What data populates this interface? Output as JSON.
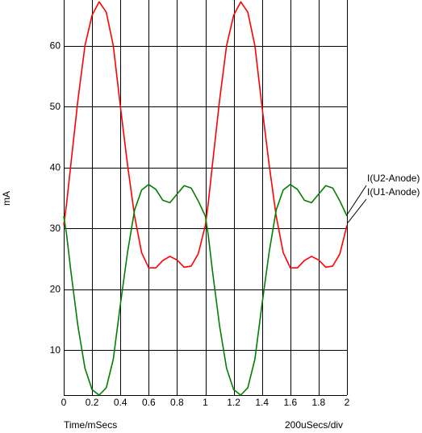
{
  "chart_data": {
    "type": "line",
    "title": "",
    "xlabel": "Time/mSecs",
    "x_scale_note": "200uSecs/div",
    "ylabel": "mA",
    "xlim": [
      0,
      2
    ],
    "ylim": [
      2.6,
      67.5
    ],
    "x_ticks": [
      0,
      0.2,
      0.4,
      0.6,
      0.8,
      1,
      1.2,
      1.4,
      1.6,
      1.8,
      2
    ],
    "x_tick_labels": [
      "0",
      "0.2",
      "0.4",
      "0.6",
      "0.8",
      "1",
      "1.2",
      "1.4",
      "1.6",
      "1.8",
      "2"
    ],
    "y_ticks": [
      10,
      20,
      30,
      40,
      50,
      60
    ],
    "y_tick_labels": [
      "10",
      "20",
      "30",
      "40",
      "50",
      "60"
    ],
    "grid": true,
    "series": [
      {
        "name": "I(U1-Anode)",
        "color": "#ff0000",
        "x": [
          0,
          0.02,
          0.05,
          0.1,
          0.15,
          0.2,
          0.25,
          0.3,
          0.35,
          0.4,
          0.45,
          0.5,
          0.55,
          0.6,
          0.65,
          0.7,
          0.75,
          0.8,
          0.85,
          0.9,
          0.95,
          1.0,
          1.02,
          1.05,
          1.1,
          1.15,
          1.2,
          1.25,
          1.3,
          1.35,
          1.4,
          1.45,
          1.5,
          1.55,
          1.6,
          1.65,
          1.7,
          1.75,
          1.8,
          1.85,
          1.9,
          1.95,
          2.0
        ],
        "values": [
          30.5,
          34,
          40.5,
          51,
          60,
          65,
          67.2,
          65.5,
          60,
          50,
          40.5,
          32,
          26,
          23.5,
          23.5,
          24.7,
          25.4,
          24.8,
          23.6,
          23.8,
          25.8,
          30.5,
          34,
          40.5,
          51,
          60,
          65,
          67.2,
          65.5,
          60,
          50,
          40.5,
          32,
          26,
          23.5,
          23.5,
          24.7,
          25.4,
          24.8,
          23.6,
          23.8,
          25.8,
          30.5
        ]
      },
      {
        "name": "I(U2-Anode)",
        "color": "#008000",
        "x": [
          0,
          0.02,
          0.05,
          0.1,
          0.15,
          0.2,
          0.25,
          0.3,
          0.35,
          0.4,
          0.45,
          0.5,
          0.55,
          0.6,
          0.65,
          0.7,
          0.75,
          0.8,
          0.85,
          0.9,
          0.95,
          1.0,
          1.02,
          1.05,
          1.1,
          1.15,
          1.2,
          1.25,
          1.3,
          1.35,
          1.4,
          1.45,
          1.5,
          1.55,
          1.6,
          1.65,
          1.7,
          1.75,
          1.8,
          1.85,
          1.9,
          1.95,
          2.0
        ],
        "values": [
          32,
          29,
          23,
          14,
          7,
          3.5,
          2.6,
          3.8,
          8.5,
          17.5,
          26,
          33,
          36.3,
          37.2,
          36.4,
          34.6,
          34.2,
          35.6,
          37,
          36.6,
          34.5,
          32,
          29,
          23,
          14,
          7,
          3.5,
          2.6,
          3.8,
          8.5,
          17.5,
          26,
          33,
          36.3,
          37.2,
          36.4,
          34.6,
          34.2,
          35.6,
          37,
          36.6,
          34.5,
          32
        ]
      }
    ]
  }
}
